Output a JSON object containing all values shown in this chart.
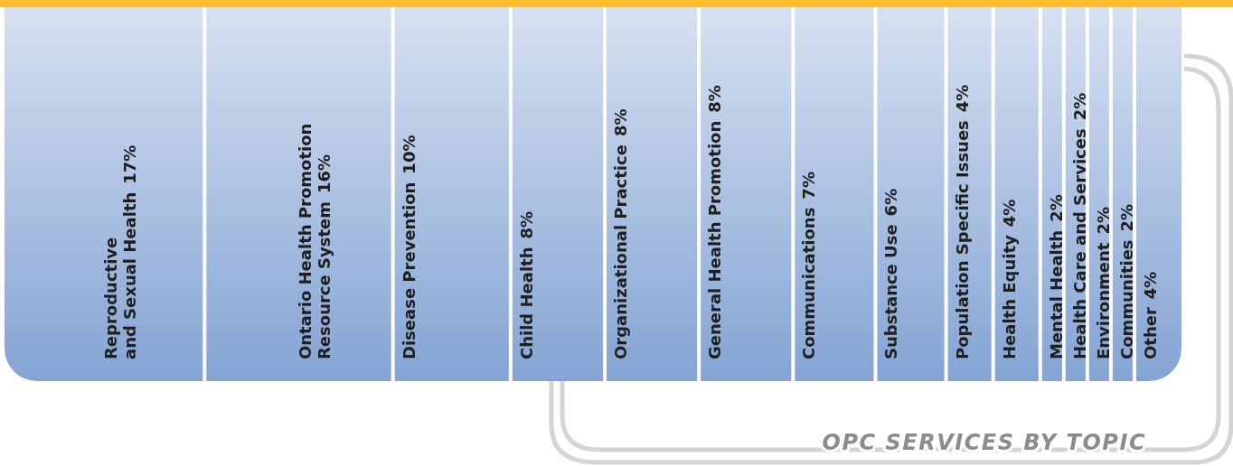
{
  "chart_data": {
    "type": "other",
    "title": "OPC SERVICES BY TOPIC",
    "categories": [
      "Reproductive\nand Sexual Health",
      "Ontario Health Promotion\nResource System",
      "Disease Prevention",
      "Child Health",
      "Organizational Practice",
      "General Health Promotion",
      "Communications",
      "Substance Use",
      "Population Specific Issues",
      "Health Equity",
      "Mental Health",
      "Health Care and Services",
      "Environment",
      "Communities",
      "Other"
    ],
    "values": [
      17,
      16,
      10,
      8,
      8,
      8,
      7,
      6,
      4,
      4,
      2,
      2,
      2,
      2,
      4
    ],
    "value_labels": [
      "17%",
      "16%",
      "10%",
      "8%",
      "8%",
      "8%",
      "7%",
      "6%",
      "4%",
      "4%",
      "2%",
      "2%",
      "2%",
      "2%",
      "4%"
    ]
  }
}
